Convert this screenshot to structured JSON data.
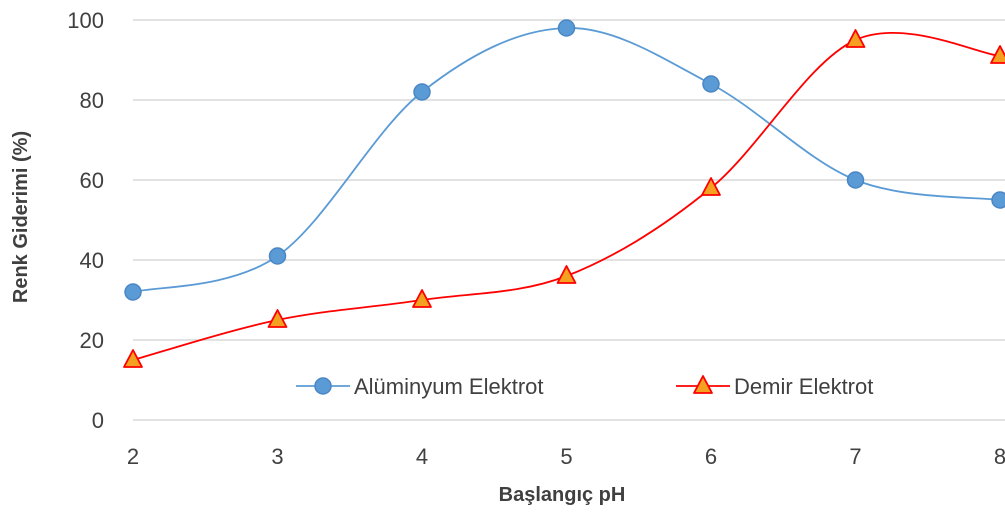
{
  "chart_data": {
    "type": "line",
    "title": "",
    "xlabel": "Başlangıç pH",
    "ylabel": "Renk Giderimi (%)",
    "x": [
      2,
      3,
      4,
      5,
      6,
      7,
      8
    ],
    "xlim": [
      2,
      8
    ],
    "ylim": [
      0,
      100
    ],
    "yticks": [
      0,
      20,
      40,
      60,
      80,
      100
    ],
    "grid": true,
    "legend_position": "bottom-right",
    "smooth": true,
    "series": [
      {
        "name": "Alüminyum Elektrot",
        "marker": "circle",
        "color": "#5b9bd5",
        "marker_stroke": "#4a86c5",
        "values": [
          32,
          41,
          82,
          98,
          84,
          60,
          55
        ]
      },
      {
        "name": "Demir Elektrot",
        "marker": "triangle",
        "color": "#ff0000",
        "marker_fill": "#f4a020",
        "values": [
          15,
          25,
          30,
          36,
          58,
          95,
          91
        ]
      }
    ]
  }
}
